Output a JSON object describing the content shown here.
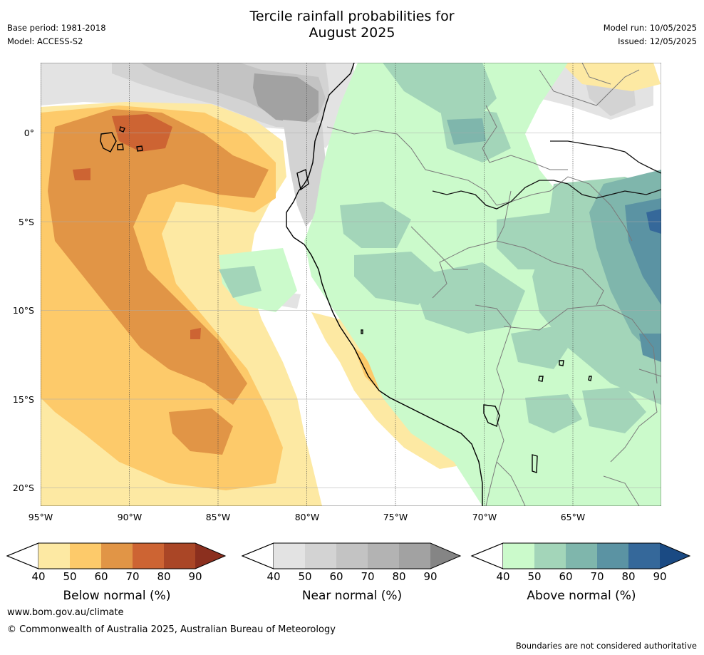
{
  "header": {
    "title_line1": "Tercile rainfall probabilities for",
    "title_line2": "August 2025",
    "base_period": "Base period: 1981-2018",
    "model": "Model: ACCESS-S2",
    "model_run": "Model run: 10/05/2025",
    "issued": "Issued: 12/05/2025"
  },
  "map": {
    "lat_labels": [
      "0°",
      "5°S",
      "10°S",
      "15°S",
      "20°S"
    ],
    "lon_labels": [
      "95°W",
      "90°W",
      "85°W",
      "80°W",
      "75°W",
      "70°W",
      "65°W"
    ]
  },
  "legends": [
    {
      "title": "Below normal (%)",
      "ticks": [
        "40",
        "50",
        "60",
        "70",
        "80",
        "90"
      ],
      "colors": [
        "#fde9a3",
        "#fdca6a",
        "#e19546",
        "#cd6433",
        "#aa4626",
        "#8b2f1e"
      ]
    },
    {
      "title": "Near normal (%)",
      "ticks": [
        "40",
        "50",
        "60",
        "70",
        "80",
        "90"
      ],
      "colors": [
        "#e3e3e3",
        "#d3d3d3",
        "#c3c3c3",
        "#b3b3b3",
        "#a2a2a2",
        "#858585"
      ]
    },
    {
      "title": "Above normal (%)",
      "ticks": [
        "40",
        "50",
        "60",
        "70",
        "80",
        "90"
      ],
      "colors": [
        "#cbfacb",
        "#a3d5b9",
        "#7fb6ac",
        "#5b93a3",
        "#35689a",
        "#1a4a83"
      ]
    }
  ],
  "footer": {
    "url": "www.bom.gov.au/climate",
    "copyright": "© Commonwealth of Australia 2025, Australian Bureau of Meteorology",
    "disclaimer": "Boundaries are not considered authoritative"
  }
}
